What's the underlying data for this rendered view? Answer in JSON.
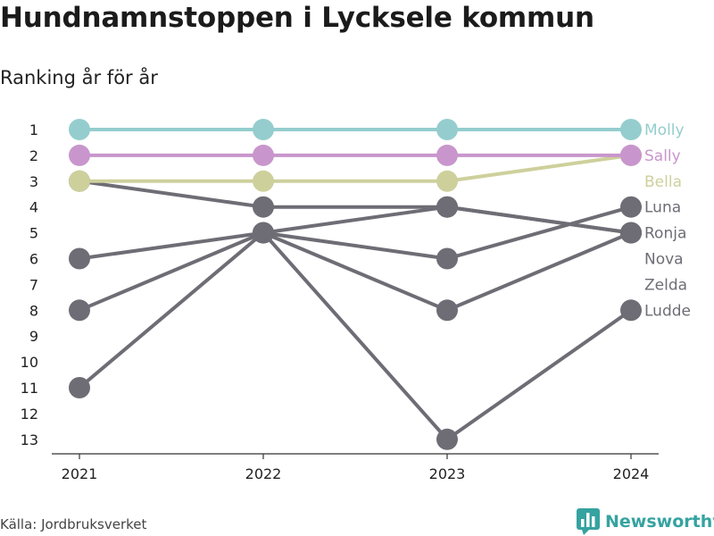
{
  "header": {
    "title": "Hundnamnstoppen i Lycksele kommun",
    "subtitle": "Ranking år för år"
  },
  "footer": {
    "source": "Källa: Jordbruksverket",
    "brand": "Newsworthy",
    "brand_icon": "bar-chart-logo-icon"
  },
  "chart_data": {
    "type": "line",
    "x": [
      "2021",
      "2022",
      "2023",
      "2024"
    ],
    "ylim": [
      1,
      13
    ],
    "y_inverted": true,
    "y_ticks": [
      "1",
      "2",
      "3",
      "4",
      "5",
      "6",
      "7",
      "8",
      "9",
      "10",
      "11",
      "12",
      "13"
    ],
    "grid": false,
    "legend": "right-end-labels",
    "series": [
      {
        "name": "Molly",
        "values": [
          1,
          1,
          1,
          1
        ],
        "color": "#95cdce"
      },
      {
        "name": "Sally",
        "values": [
          2,
          2,
          2,
          2
        ],
        "color": "#c896cc"
      },
      {
        "name": "Bella",
        "values": [
          3,
          3,
          3,
          2
        ],
        "color": "#ced09c"
      },
      {
        "name": "Luna",
        "values": [
          6,
          5,
          6,
          4
        ],
        "color": "#6e6d75"
      },
      {
        "name": "Ronja",
        "values": [
          3,
          4,
          4,
          5
        ],
        "color": "#6e6d75"
      },
      {
        "name": "Nova",
        "values": [
          8,
          5,
          8,
          5
        ],
        "color": "#6e6d75"
      },
      {
        "name": "Zelda",
        "values": [
          11,
          5,
          4,
          5
        ],
        "color": "#6e6d75"
      },
      {
        "name": "Ludde",
        "values": [
          null,
          5,
          13,
          8
        ],
        "color": "#6e6d75"
      }
    ]
  }
}
